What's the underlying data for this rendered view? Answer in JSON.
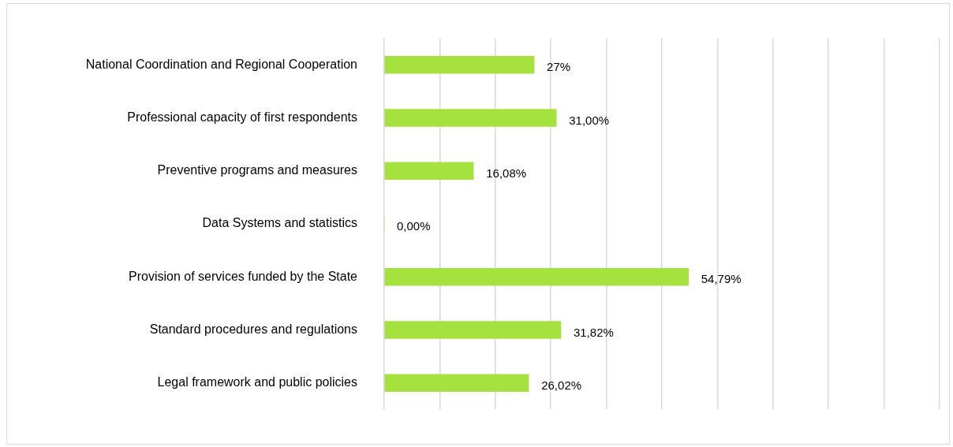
{
  "chart_data": {
    "type": "bar",
    "orientation": "horizontal",
    "categories": [
      "National Coordination and Regional Cooperation",
      "Professional capacity of first respondents",
      "Preventive programs and measures",
      "Data Systems and statistics",
      "Provision of services funded by the State",
      "Standard procedures and regulations",
      "Legal framework and public policies"
    ],
    "values": [
      27,
      31,
      16.08,
      0,
      54.79,
      31.82,
      26.02
    ],
    "value_labels": [
      "27%",
      "31,00%",
      "16,08%",
      "0,00%",
      "54,79%",
      "31,82%",
      "26,02%"
    ],
    "color": "#a6e23f",
    "xlim": [
      0,
      100
    ],
    "xticks": [
      {
        "value": 0,
        "label": null
      },
      {
        "value": 10,
        "label": null
      },
      {
        "value": 20,
        "label": null
      },
      {
        "value": 30,
        "label": null
      },
      {
        "value": 40,
        "label": null
      },
      {
        "value": 50,
        "label": null
      },
      {
        "value": 60,
        "label": null
      },
      {
        "value": 70,
        "label": null
      },
      {
        "value": 80,
        "label": null
      },
      {
        "value": 90,
        "label": null
      },
      {
        "value": 100,
        "label": null
      }
    ],
    "grid": "x",
    "tick_labels": "y",
    "legend": false
  }
}
